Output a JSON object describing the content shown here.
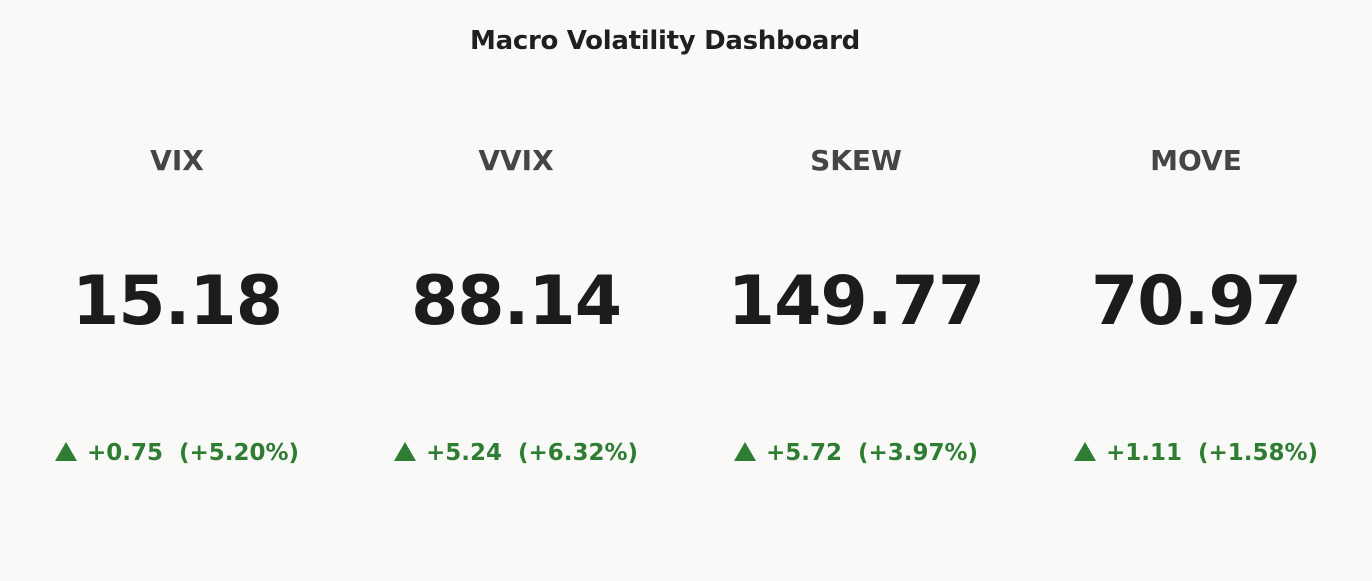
{
  "dashboard": {
    "title": "Macro Volatility Dashboard"
  },
  "colors": {
    "background": "#f9f9f7",
    "label": "#454545",
    "value": "#1c1c1c",
    "positive": "#2e7d32"
  },
  "chart_data": {
    "type": "table",
    "title": "Macro Volatility Dashboard",
    "metrics": [
      {
        "label": "VIX",
        "value": "15.18",
        "change": "+0.75",
        "change_pct": "(+5.20%)",
        "direction": "up",
        "arrow_icon": "triangle-up-icon"
      },
      {
        "label": "VVIX",
        "value": "88.14",
        "change": "+5.24",
        "change_pct": "(+6.32%)",
        "direction": "up",
        "arrow_icon": "triangle-up-icon"
      },
      {
        "label": "SKEW",
        "value": "149.77",
        "change": "+5.72",
        "change_pct": "(+3.97%)",
        "direction": "up",
        "arrow_icon": "triangle-up-icon"
      },
      {
        "label": "MOVE",
        "value": "70.97",
        "change": "+1.11",
        "change_pct": "(+1.58%)",
        "direction": "up",
        "arrow_icon": "triangle-up-icon"
      }
    ]
  }
}
